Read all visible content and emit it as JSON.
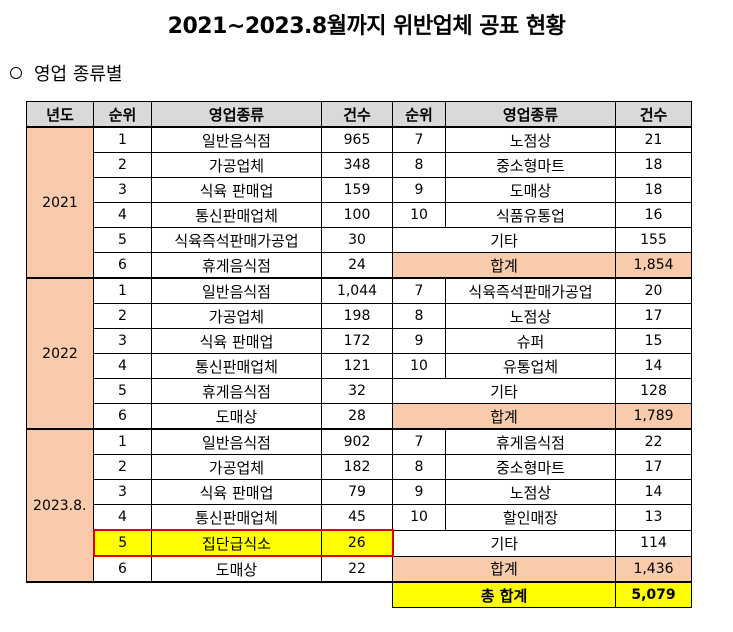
{
  "title": "2021~2023.8월까지 위반업체 공표 현황",
  "subtitle": "영업 종류별",
  "headers": [
    "년도",
    "순위",
    "영업종류",
    "건수",
    "순위",
    "영업종류",
    "건수"
  ],
  "groups": [
    {
      "year": "2021",
      "rows": [
        {
          "r1": "1",
          "b1": "일반음식점",
          "c1": "965",
          "r2": "7",
          "b2": "노점상",
          "c2": "21"
        },
        {
          "r1": "2",
          "b1": "가공업체",
          "c1": "348",
          "r2": "8",
          "b2": "중소형마트",
          "c2": "18"
        },
        {
          "r1": "3",
          "b1": "식육 판매업",
          "c1": "159",
          "r2": "9",
          "b2": "도매상",
          "c2": "18"
        },
        {
          "r1": "4",
          "b1": "통신판매업체",
          "c1": "100",
          "r2": "10",
          "b2": "식품유통업",
          "c2": "16"
        },
        {
          "r1": "5",
          "b1": "식육즉석판매가공업",
          "c1": "30",
          "other_label": "기타",
          "other_count": "155"
        },
        {
          "r1": "6",
          "b1": "휴게음식점",
          "c1": "24",
          "sum_label": "합계",
          "sum_count": "1,854"
        }
      ]
    },
    {
      "year": "2022",
      "rows": [
        {
          "r1": "1",
          "b1": "일반음식점",
          "c1": "1,044",
          "r2": "7",
          "b2": "식육즉석판매가공업",
          "c2": "20"
        },
        {
          "r1": "2",
          "b1": "가공업체",
          "c1": "198",
          "r2": "8",
          "b2": "노점상",
          "c2": "17"
        },
        {
          "r1": "3",
          "b1": "식육 판매업",
          "c1": "172",
          "r2": "9",
          "b2": "슈퍼",
          "c2": "15"
        },
        {
          "r1": "4",
          "b1": "통신판매업체",
          "c1": "121",
          "r2": "10",
          "b2": "유통업체",
          "c2": "14"
        },
        {
          "r1": "5",
          "b1": "휴게음식점",
          "c1": "32",
          "other_label": "기타",
          "other_count": "128"
        },
        {
          "r1": "6",
          "b1": "도매상",
          "c1": "28",
          "sum_label": "합계",
          "sum_count": "1,789"
        }
      ]
    },
    {
      "year": "2023.8.",
      "rows": [
        {
          "r1": "1",
          "b1": "일반음식점",
          "c1": "902",
          "r2": "7",
          "b2": "휴게음식점",
          "c2": "22"
        },
        {
          "r1": "2",
          "b1": "가공업체",
          "c1": "182",
          "r2": "8",
          "b2": "중소형마트",
          "c2": "17"
        },
        {
          "r1": "3",
          "b1": "식육 판매업",
          "c1": "79",
          "r2": "9",
          "b2": "노점상",
          "c2": "14"
        },
        {
          "r1": "4",
          "b1": "통신판매업체",
          "c1": "45",
          "r2": "10",
          "b2": "할인매장",
          "c2": "13"
        },
        {
          "r1": "5",
          "b1": "집단급식소",
          "c1": "26",
          "other_label": "기타",
          "other_count": "114"
        },
        {
          "r1": "6",
          "b1": "도매상",
          "c1": "22",
          "sum_label": "합계",
          "sum_count": "1,436"
        }
      ]
    }
  ],
  "total": {
    "label": "총 합계",
    "count": "5,079"
  },
  "colors": {
    "header_bg": "#d9d9d9",
    "year_bg": "#f8cbad",
    "sum_bg": "#f8cbad",
    "highlight": "#ffff00",
    "highlight_border": "#e00000"
  }
}
